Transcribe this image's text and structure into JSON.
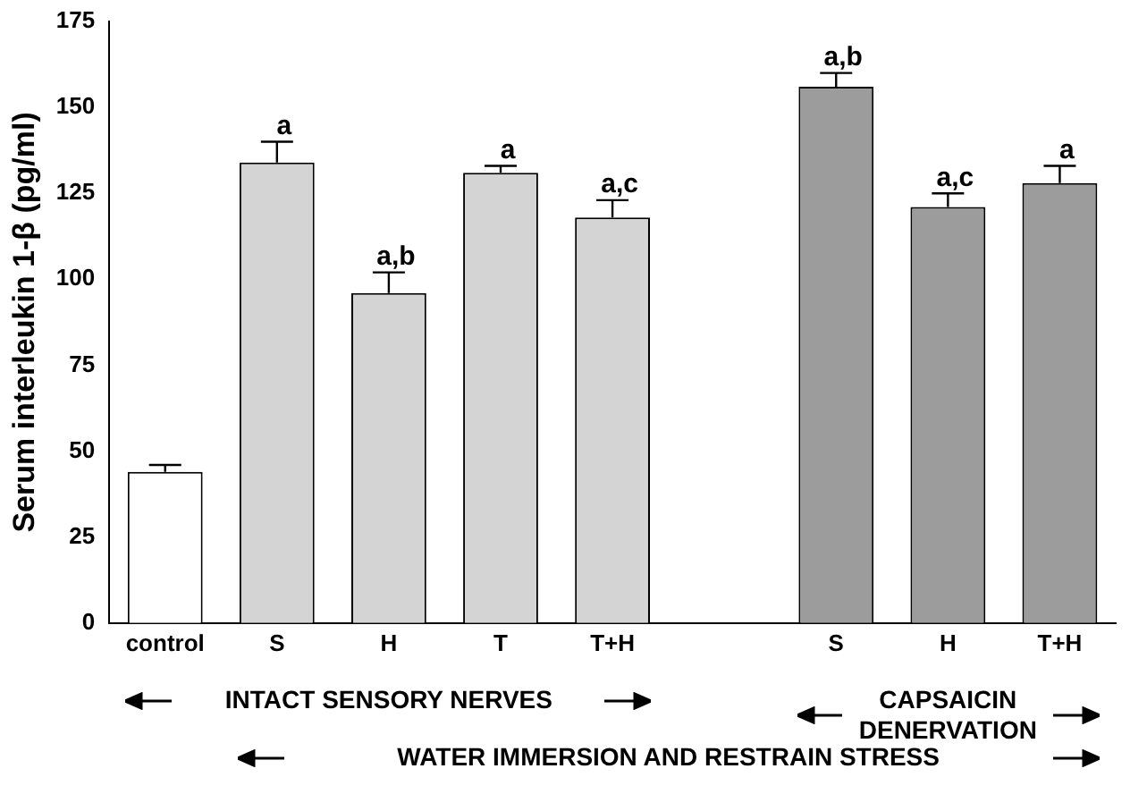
{
  "chart_data": {
    "type": "bar",
    "ylabel": "Serum interleukin 1-β (pg/ml)",
    "categories": [
      "control",
      "S",
      "H",
      "T",
      "T+H",
      null,
      "S",
      "H",
      "T+H"
    ],
    "values": [
      44,
      134,
      96,
      131,
      118,
      null,
      156,
      121,
      128
    ],
    "colors": [
      "#ffffff",
      "#d4d4d4",
      "#d4d4d4",
      "#d4d4d4",
      "#d4d4d4",
      null,
      "#9c9c9c",
      "#9c9c9c",
      "#9c9c9c"
    ],
    "errors": [
      [
        44,
        46
      ],
      [
        134,
        140
      ],
      [
        96,
        102
      ],
      [
        131,
        133
      ],
      [
        118,
        123
      ],
      null,
      [
        156,
        160
      ],
      [
        121,
        125
      ],
      [
        128,
        133
      ]
    ],
    "value_labels": [
      null,
      "a",
      "a,b",
      "a",
      "a,c",
      null,
      "a,b",
      "a,c",
      "a"
    ],
    "ylim": [
      0,
      175
    ],
    "yticks": [
      0,
      25,
      50,
      75,
      100,
      125,
      150,
      175
    ],
    "grid": false,
    "legend": false,
    "annotations": [
      "INTACT SENSORY NERVES",
      "CAPSAICIN DENERVATION",
      "WATER IMMERSION AND RESTRAIN STRESS"
    ]
  }
}
